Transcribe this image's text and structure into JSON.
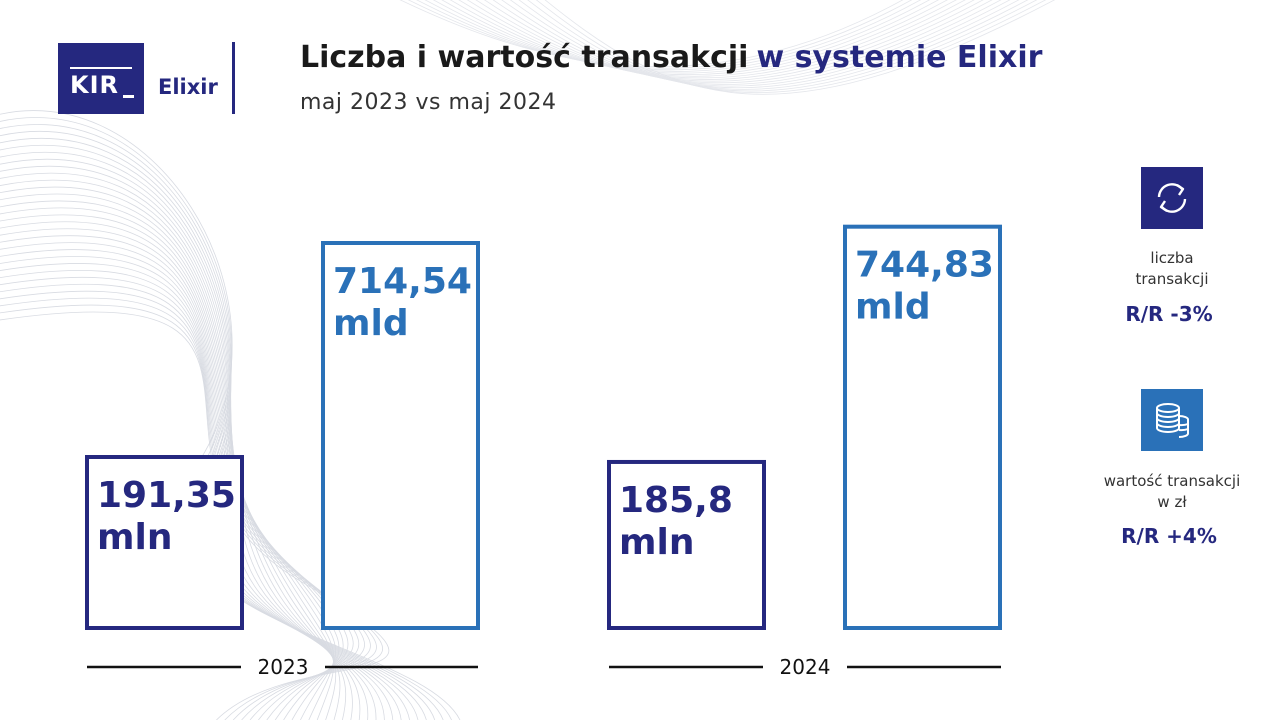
{
  "header": {
    "logo_kir": "KIR",
    "logo_elixir": "Elixir",
    "title_main": "Liczba i wartość transakcji",
    "title_accent": "w systemie Elixir",
    "subtitle": "maj 2023 vs maj 2024"
  },
  "colors": {
    "count": "#25287f",
    "value": "#2a71b8",
    "count_icon_bg": "#25287f",
    "value_icon_bg": "#2a71b8"
  },
  "chart_data": {
    "type": "bar",
    "categories": [
      "2023",
      "2024"
    ],
    "series": [
      {
        "key": "count",
        "values": [
          191.35,
          185.8
        ],
        "unit": "mln",
        "labels": [
          "191,35",
          "185,8"
        ]
      },
      {
        "key": "value",
        "values": [
          714.54,
          744.83
        ],
        "unit": "mld",
        "labels": [
          "714,54",
          "744,83"
        ]
      }
    ]
  },
  "legend": {
    "count": {
      "icon": "refresh-arrows-icon",
      "label_line1": "liczba",
      "label_line2": "transakcji",
      "change": "R/R -3%"
    },
    "value": {
      "icon": "coin-stack-icon",
      "label_line1": "wartość transakcji",
      "label_line2": "w zł",
      "change": "R/R +4%"
    }
  }
}
